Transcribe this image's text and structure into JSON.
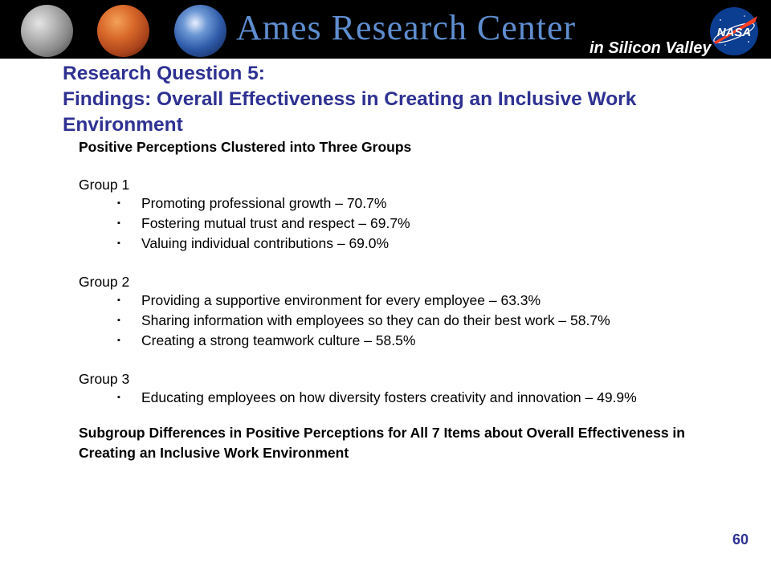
{
  "header": {
    "title": "Ames Research Center",
    "subtitle": "in Silicon Valley",
    "logo_text": "NASA",
    "colors": {
      "banner_bg": "#000000",
      "title": "#5f8ecf",
      "subtitle": "#ffffff",
      "logo_blue": "#0b3d91",
      "logo_red": "#fc3d21"
    }
  },
  "slide": {
    "title_line1": "Research Question 5:",
    "title_line2": "Findings: Overall Effectiveness in Creating an Inclusive Work Environment",
    "title_color": "#2e3192",
    "section_heading": "Positive Perceptions Clustered into Three Groups",
    "bullet_glyph": "▪",
    "groups": [
      {
        "label": "Group 1",
        "items": [
          "Promoting professional growth – 70.7%",
          "Fostering mutual trust and respect – 69.7%",
          "Valuing individual contributions – 69.0%"
        ]
      },
      {
        "label": "Group 2",
        "items": [
          "Providing a supportive environment for every employee – 63.3%",
          "Sharing information with employees so they can do their best work – 58.7%",
          "Creating a strong teamwork culture – 58.5%"
        ]
      },
      {
        "label": "Group 3",
        "items": [
          "Educating employees on how diversity fosters creativity and innovation – 49.9%"
        ]
      }
    ],
    "closing_heading": "Subgroup Differences in Positive Perceptions for All 7 Items about Overall Effectiveness in Creating an Inclusive Work Environment",
    "page_number": "60"
  }
}
